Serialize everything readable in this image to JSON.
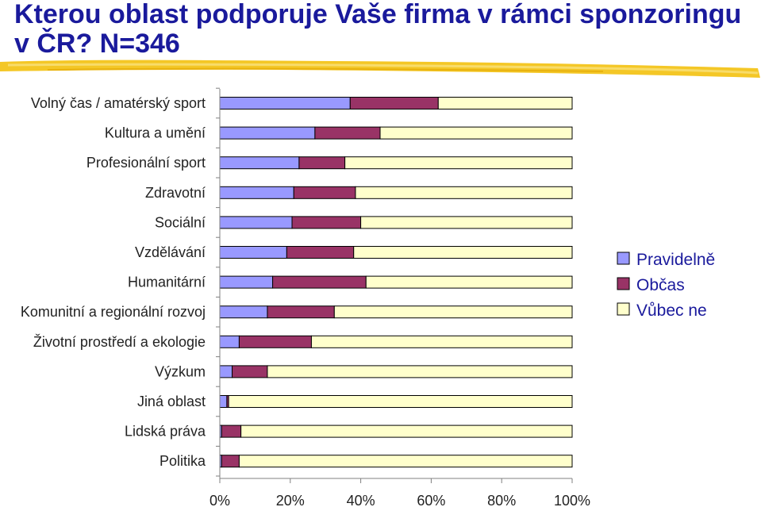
{
  "title": "Kterou oblast podporuje Vaše firma v rámci sponzoringu v ČR? N=346",
  "colors": {
    "title": "#1a1a9c",
    "highlight": "#f3c41a",
    "axis": "#808080"
  },
  "chart_data": {
    "type": "bar",
    "orientation": "horizontal",
    "stacked": true,
    "percent_stacked": true,
    "categories": [
      "Volný čas / amatérský sport",
      "Kultura a umění",
      "Profesionální sport",
      "Zdravotní",
      "Sociální",
      "Vzdělávání",
      "Humanitární",
      "Komunitní a regionální rozvoj",
      "Životní prostředí a ekologie",
      "Výzkum",
      "Jiná oblast",
      "Lidská práva",
      "Politika"
    ],
    "series": [
      {
        "name": "Pravidelně",
        "color": "#9999ff",
        "values": [
          37,
          27,
          22.5,
          21,
          20.5,
          19,
          15,
          13.5,
          5.5,
          3.5,
          2,
          0.5,
          0.5
        ]
      },
      {
        "name": "Občas",
        "color": "#993366",
        "values": [
          25,
          18.5,
          13,
          17.5,
          19.5,
          19,
          26.5,
          19,
          20.5,
          10,
          0.5,
          5.5,
          5
        ]
      },
      {
        "name": "Vůbec ne",
        "color": "#ffffcc",
        "values": [
          38,
          54.5,
          64.5,
          61.5,
          60,
          62,
          58.5,
          67.5,
          74,
          86.5,
          97.5,
          94,
          94.5
        ]
      }
    ],
    "x_ticks": [
      "0%",
      "20%",
      "40%",
      "60%",
      "80%",
      "100%"
    ],
    "xlim": [
      0,
      100
    ],
    "legend": "right",
    "grid": false
  }
}
